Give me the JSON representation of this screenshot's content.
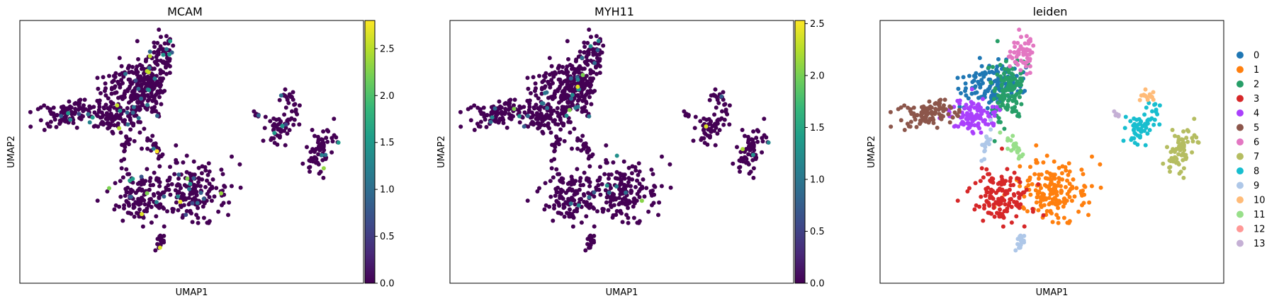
{
  "chart_data": [
    {
      "type": "scatter",
      "title": "MCAM",
      "xlabel": "UMAP1",
      "ylabel": "UMAP2",
      "xticks": [],
      "yticks": [],
      "color_scale": "viridis",
      "colorbar": {
        "min": 0.0,
        "max": 2.8,
        "ticks": [
          "0.0",
          "0.5",
          "1.0",
          "1.5",
          "2.0",
          "2.5"
        ]
      },
      "point_values": "mostly 0.0; a few cells 0.7-1.6; isolated cells up to ~2.8"
    },
    {
      "type": "scatter",
      "title": "MYH11",
      "xlabel": "UMAP1",
      "ylabel": "UMAP2",
      "xticks": [],
      "yticks": [],
      "color_scale": "viridis",
      "colorbar": {
        "min": 0.0,
        "max": 2.53,
        "ticks": [
          "0.0",
          "0.5",
          "1.0",
          "1.5",
          "2.0",
          "2.5"
        ]
      },
      "point_values": "mostly 0.0; a few cells 0.8-1.2; isolated cells up to ~2.5"
    },
    {
      "type": "scatter",
      "title": "leiden",
      "xlabel": "UMAP1",
      "ylabel": "UMAP2",
      "xticks": [],
      "yticks": [],
      "legend_position": "right",
      "series": [
        {
          "name": "0",
          "color": "#1f77b4"
        },
        {
          "name": "1",
          "color": "#ff7f0e"
        },
        {
          "name": "2",
          "color": "#279e68"
        },
        {
          "name": "3",
          "color": "#d62728"
        },
        {
          "name": "4",
          "color": "#aa40fc"
        },
        {
          "name": "5",
          "color": "#8c564b"
        },
        {
          "name": "6",
          "color": "#e377c2"
        },
        {
          "name": "7",
          "color": "#b5bd61"
        },
        {
          "name": "8",
          "color": "#17becf"
        },
        {
          "name": "9",
          "color": "#aec7e8"
        },
        {
          "name": "10",
          "color": "#ffbb78"
        },
        {
          "name": "11",
          "color": "#98df8a"
        },
        {
          "name": "12",
          "color": "#ff9896"
        },
        {
          "name": "13",
          "color": "#c5b0d5"
        }
      ]
    }
  ]
}
